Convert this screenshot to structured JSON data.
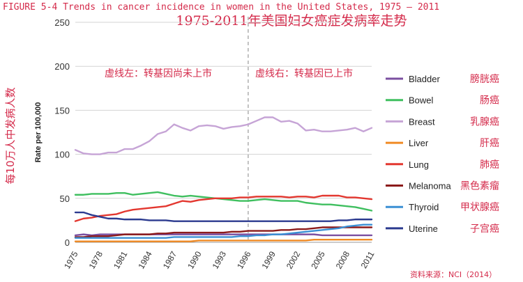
{
  "header": {
    "figure_title": "FIGURE 5-4 Trends in cancer incidence in women in the United States, 1975 – 2011",
    "chinese_title": "1975-2011年美国妇女癌症发病率走势"
  },
  "annotations": {
    "left_note": "虚线左：转基因尚未上市",
    "right_note": "虚线右：转基因已上市",
    "divider_year": 1996,
    "source": "资料来源：NCI（2014）",
    "cn_ylabel": "每10万人中发病人数"
  },
  "chart_data": {
    "type": "line",
    "title": "FIGURE 5-4 Trends in cancer incidence in women in the United States, 1975 – 2011",
    "ylabel": "Rate per 100,000",
    "xlabel": "",
    "xlim": [
      1975,
      2011
    ],
    "ylim": [
      0,
      250
    ],
    "yticks": [
      0,
      50,
      100,
      150,
      200,
      250
    ],
    "xticks": [
      1975,
      1978,
      1981,
      1984,
      1987,
      1990,
      1993,
      1996,
      1999,
      2002,
      2005,
      2008,
      2011
    ],
    "grid": "horizontal",
    "legend_position": "right",
    "x": [
      1975,
      1976,
      1977,
      1978,
      1979,
      1980,
      1981,
      1982,
      1983,
      1984,
      1985,
      1986,
      1987,
      1988,
      1989,
      1990,
      1991,
      1992,
      1993,
      1994,
      1995,
      1996,
      1997,
      1998,
      1999,
      2000,
      2001,
      2002,
      2003,
      2004,
      2005,
      2006,
      2007,
      2008,
      2009,
      2010,
      2011
    ],
    "series": [
      {
        "name": "Bladder",
        "cn": "膀胱癌",
        "color": "#7b4fa0",
        "values": [
          8,
          9,
          8,
          9,
          9,
          9,
          9,
          9,
          9,
          9,
          9,
          9,
          9,
          9,
          9,
          9,
          9,
          9,
          9,
          9,
          9,
          9,
          9,
          9,
          9,
          9,
          9,
          9,
          9,
          9,
          8,
          8,
          8,
          8,
          8,
          8,
          8
        ]
      },
      {
        "name": "Bowel",
        "cn": "肠癌",
        "color": "#3fbf5f",
        "values": [
          54,
          54,
          55,
          55,
          55,
          56,
          56,
          54,
          55,
          56,
          57,
          55,
          53,
          52,
          53,
          52,
          51,
          50,
          49,
          48,
          47,
          47,
          48,
          49,
          48,
          47,
          47,
          47,
          45,
          44,
          43,
          43,
          42,
          41,
          40,
          38,
          36
        ]
      },
      {
        "name": "Breast",
        "cn": "乳腺癌",
        "color": "#c6a4d6",
        "values": [
          105,
          101,
          100,
          100,
          102,
          102,
          106,
          106,
          110,
          115,
          123,
          126,
          134,
          130,
          127,
          132,
          133,
          132,
          129,
          131,
          132,
          134,
          138,
          142,
          142,
          137,
          138,
          135,
          127,
          128,
          126,
          126,
          127,
          128,
          130,
          126,
          130
        ]
      },
      {
        "name": "Liver",
        "cn": "肝癌",
        "color": "#f08a24",
        "values": [
          1,
          1,
          1,
          1,
          1,
          1,
          1,
          1,
          1,
          1,
          1,
          1,
          1,
          1,
          1,
          2,
          2,
          2,
          2,
          2,
          2,
          2,
          2,
          2,
          2,
          2,
          2,
          2,
          2,
          3,
          3,
          3,
          3,
          3,
          3,
          3,
          3
        ]
      },
      {
        "name": "Lung",
        "cn": "肺癌",
        "color": "#e3372f",
        "values": [
          24,
          27,
          28,
          30,
          31,
          32,
          35,
          37,
          38,
          39,
          40,
          41,
          44,
          47,
          46,
          48,
          49,
          50,
          50,
          50,
          51,
          51,
          52,
          52,
          52,
          52,
          51,
          52,
          52,
          51,
          53,
          53,
          53,
          51,
          51,
          50,
          49
        ]
      },
      {
        "name": "Melanoma",
        "cn": "黑色素瘤",
        "color": "#8b1a1a",
        "values": [
          6,
          6,
          7,
          7,
          7,
          8,
          9,
          9,
          9,
          9,
          10,
          10,
          11,
          11,
          11,
          11,
          11,
          11,
          11,
          12,
          12,
          13,
          13,
          13,
          13,
          14,
          14,
          15,
          15,
          16,
          17,
          17,
          17,
          17,
          17,
          17,
          17
        ]
      },
      {
        "name": "Thyroid",
        "cn": "甲状腺癌",
        "color": "#3a8fd4",
        "values": [
          5,
          5,
          5,
          5,
          5,
          5,
          5,
          5,
          5,
          5,
          5,
          5,
          6,
          6,
          6,
          6,
          6,
          6,
          6,
          6,
          7,
          7,
          8,
          8,
          9,
          9,
          10,
          11,
          12,
          13,
          14,
          15,
          16,
          18,
          19,
          20,
          20
        ]
      },
      {
        "name": "Uterine",
        "cn": "子宫癌",
        "color": "#2b3a8f",
        "values": [
          34,
          34,
          31,
          29,
          27,
          27,
          26,
          26,
          26,
          25,
          25,
          25,
          24,
          24,
          24,
          24,
          24,
          24,
          24,
          24,
          24,
          24,
          24,
          24,
          24,
          24,
          24,
          24,
          24,
          24,
          24,
          24,
          25,
          25,
          26,
          26,
          26
        ]
      }
    ]
  }
}
